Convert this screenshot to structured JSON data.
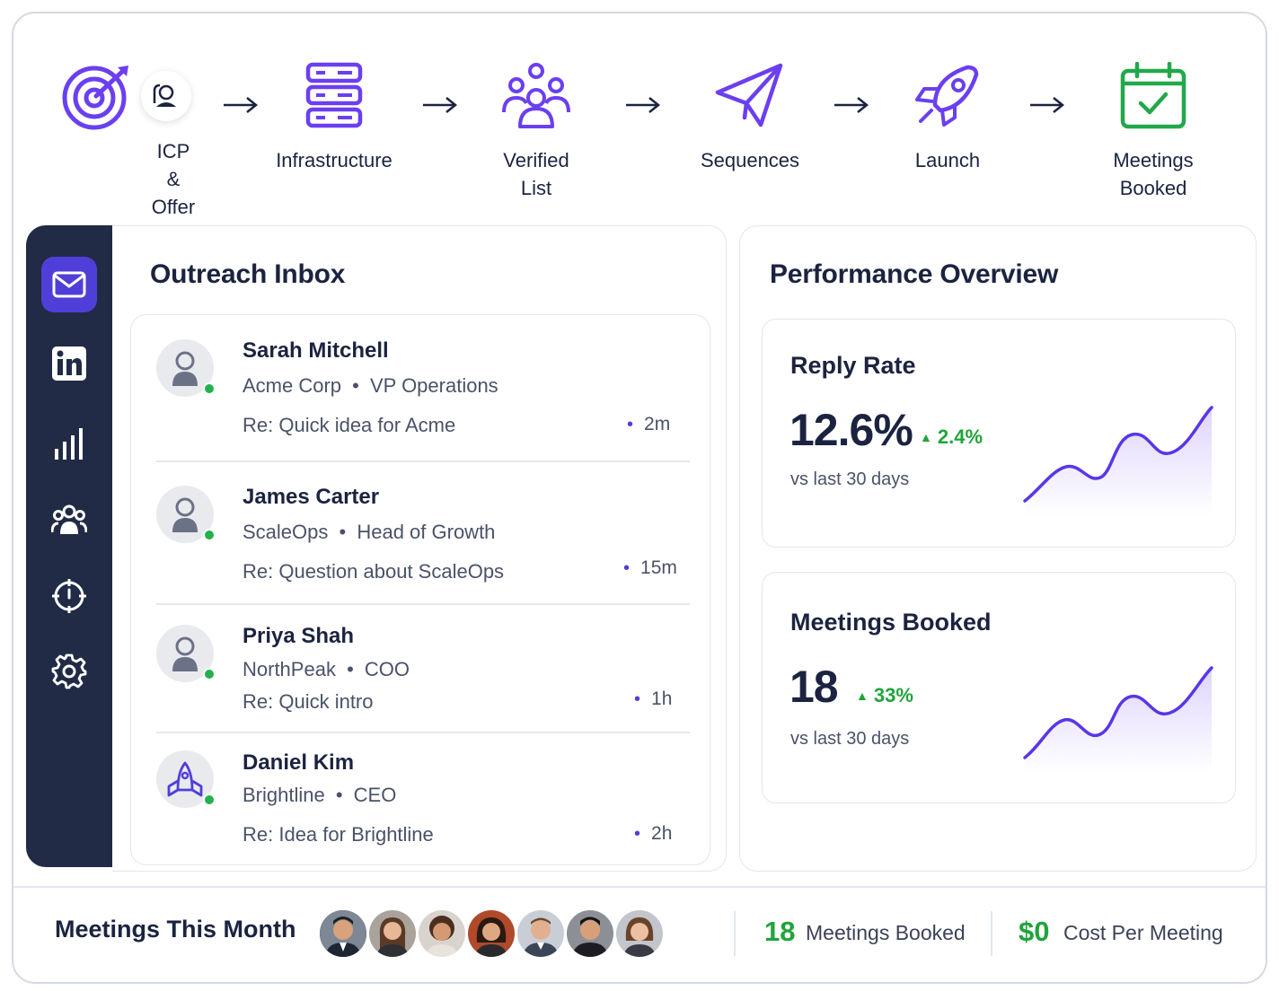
{
  "pipeline": {
    "steps": [
      {
        "label": "ICP & Offer",
        "icon": "target-icon"
      },
      {
        "label": "Infrastructure",
        "icon": "server-icon"
      },
      {
        "label": "Verified List",
        "icon": "people-icon"
      },
      {
        "label": "Sequences",
        "icon": "paper-plane-icon"
      },
      {
        "label": "Launch",
        "icon": "rocket-icon"
      },
      {
        "label": "Meetings Booked",
        "icon": "calendar-check-icon"
      }
    ]
  },
  "sidebar": {
    "items": [
      {
        "name": "mail",
        "icon": "mail-icon",
        "active": true
      },
      {
        "name": "linkedin",
        "icon": "linkedin-icon",
        "active": false
      },
      {
        "name": "analytics",
        "icon": "bar-chart-icon",
        "active": false
      },
      {
        "name": "contacts",
        "icon": "team-icon",
        "active": false
      },
      {
        "name": "targeting",
        "icon": "crosshair-icon",
        "active": false
      },
      {
        "name": "settings",
        "icon": "gear-icon",
        "active": false
      }
    ]
  },
  "inbox": {
    "title": "Outreach Inbox",
    "messages": [
      {
        "name": "Sarah Mitchell",
        "company": "Acme Corp",
        "role": "VP Operations",
        "subject": "Re: Quick idea for Acme",
        "time": "2m"
      },
      {
        "name": "James Carter",
        "company": "ScaleOps",
        "role": "Head of Growth",
        "subject": "Re: Question about ScaleOps",
        "time": "15m"
      },
      {
        "name": "Priya Shah",
        "company": "NorthPeak",
        "role": "COO",
        "subject": "Re: Quick intro",
        "time": "1h"
      },
      {
        "name": "Daniel Kim",
        "company": "Brightline",
        "role": "CEO",
        "subject": "Re: Idea for Brightline",
        "time": "2h"
      }
    ],
    "separator": "•"
  },
  "performance": {
    "title": "Performance Overview",
    "cards": [
      {
        "title": "Reply Rate",
        "value": "12.6%",
        "delta": "2.4%",
        "sub": "vs last 30 days"
      },
      {
        "title": "Meetings Booked",
        "value": "18",
        "delta": "33%",
        "sub": "vs last 30 days"
      }
    ]
  },
  "footer": {
    "title": "Meetings This Month",
    "meetings_count": "18",
    "meetings_label": "Meetings Booked",
    "cost_value": "$0",
    "cost_label": "Cost Per Meeting"
  },
  "colors": {
    "accent": "#4f3fd8",
    "icon_purple": "#6b3ff0",
    "sidebar_bg": "#212b45",
    "success": "#1fa43b",
    "calendar_green": "#22a84a"
  }
}
